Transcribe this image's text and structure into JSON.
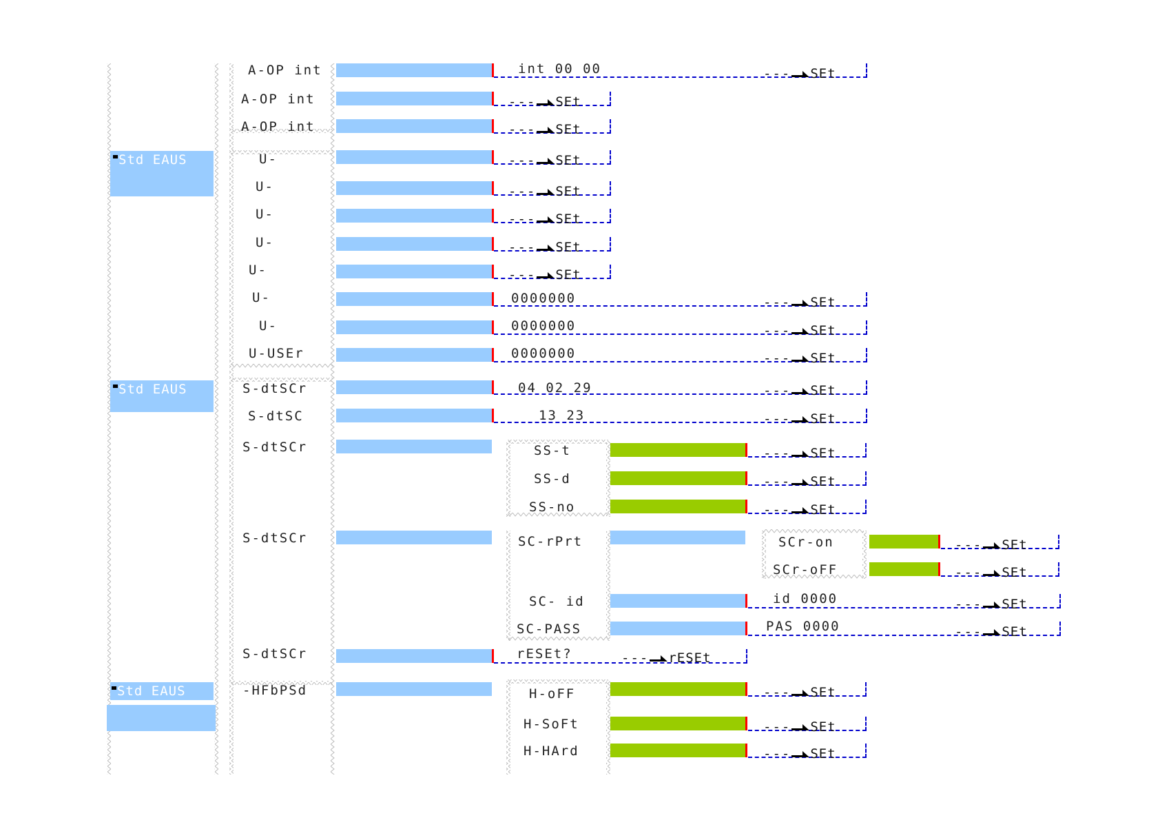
{
  "colors": {
    "menu_bar": "#99ccff",
    "option_bar": "#99cc00",
    "cursor": "#ff0000",
    "select_line": "#0000cc"
  },
  "roots": [
    {
      "label": "Std EAUS"
    },
    {
      "label": "Std EAUS"
    },
    {
      "label": "Std EAUS"
    }
  ],
  "level1": [
    "A-OP int",
    "A-OP int",
    "A-OP int",
    "U-",
    "U-",
    "U-",
    "U-",
    "U-",
    "U-",
    "U-",
    "U-USEr",
    "S-dtSCr",
    "S-dtSC",
    "S-dtSCr",
    "S-dtSCr",
    "S-dtSCr",
    "-HFbPSd"
  ],
  "values": {
    "int_time": "int 00 00",
    "zeros": "0000000",
    "date": "04 02 29",
    "time": "13 23",
    "id_value": "id 0000",
    "pas_value": "PAS 0000"
  },
  "level2": [
    "SS-t",
    "SS-d",
    "SS-no",
    "SC-rPrt",
    "SC- id",
    "SC-PASS",
    "rESEt?",
    "H-oFF",
    "H-SoFt",
    "H-HArd"
  ],
  "level3": [
    "SCr-on",
    "SCr-oFF"
  ],
  "actions": {
    "dash": "---",
    "set": "SEt",
    "reset": "rESEt"
  },
  "icons": [
    "arrow-right-icon",
    "up-arrow-icon",
    "down-arrow-icon"
  ]
}
